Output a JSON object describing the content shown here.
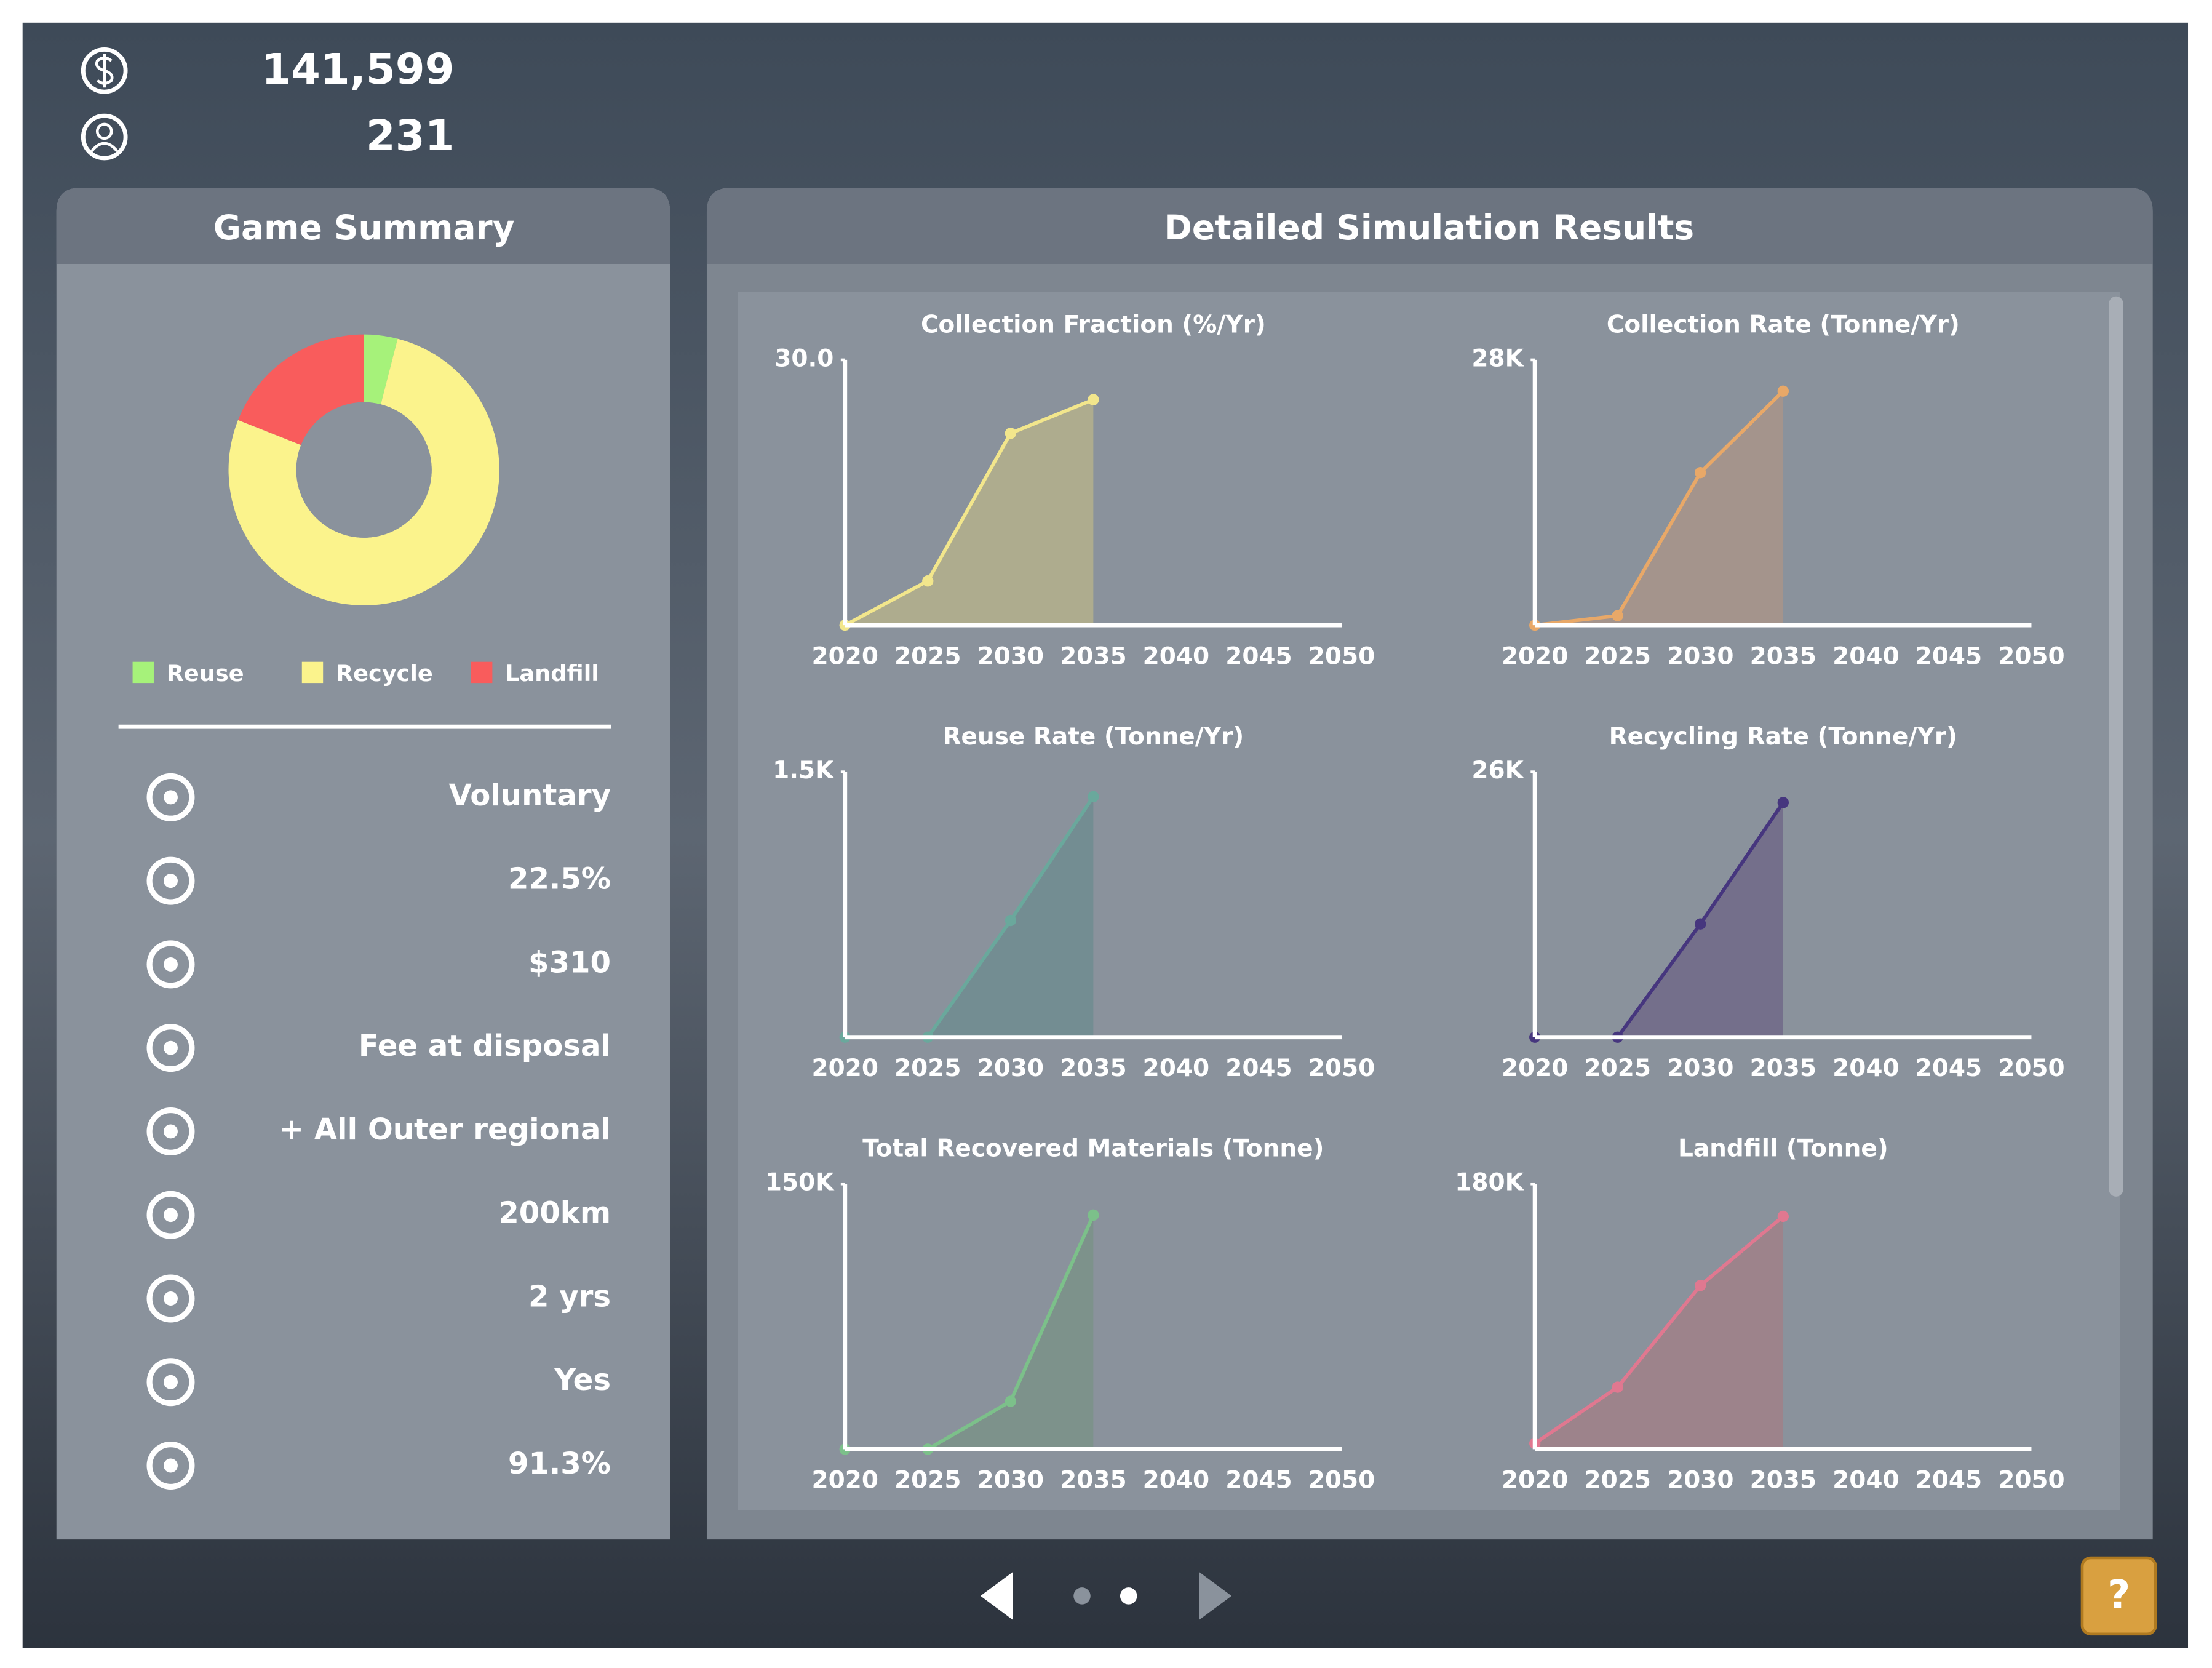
{
  "header": {
    "money": "141,599",
    "population": "231"
  },
  "summary": {
    "title": "Game Summary",
    "rows": [
      "Voluntary",
      "22.5%",
      "$310",
      "Fee at disposal",
      "+ All Outer regional",
      "200km",
      "2 yrs",
      "Yes",
      "91.3%"
    ]
  },
  "results_title": "Detailed Simulation Results",
  "help_label": "?",
  "chart_data": [
    {
      "type": "pie",
      "categories": [
        "Reuse",
        "Recycle",
        "Landfill"
      ],
      "values": [
        4,
        77,
        19
      ],
      "colors": [
        "#a6f27a",
        "#fbf38c",
        "#f95c5c"
      ],
      "donut": true
    },
    {
      "type": "area",
      "title": "Collection Fraction (%/Yr)",
      "x": [
        2020,
        2025,
        2030,
        2035
      ],
      "values": [
        0,
        5,
        21.7,
        25.5
      ],
      "color": "#f2e68c",
      "fill": "#b4b08c",
      "xlim": [
        2020,
        2050
      ],
      "ylim": [
        0,
        30
      ],
      "xticks": [
        2020,
        2025,
        2030,
        2035,
        2040,
        2045,
        2050
      ],
      "yticks": [
        {
          "value": 30,
          "label": "30.0"
        }
      ]
    },
    {
      "type": "area",
      "title": "Collection Rate (Tonne/Yr)",
      "x": [
        2020,
        2025,
        2030,
        2035
      ],
      "values": [
        0,
        1000,
        16100,
        24700
      ],
      "color": "#e8a868",
      "fill": "#a8948a",
      "xlim": [
        2020,
        2050
      ],
      "ylim": [
        0,
        28000
      ],
      "xticks": [
        2020,
        2025,
        2030,
        2035,
        2040,
        2045,
        2050
      ],
      "yticks": [
        {
          "value": 28000,
          "label": "28K"
        }
      ]
    },
    {
      "type": "area",
      "title": "Reuse Rate (Tonne/Yr)",
      "x": [
        2020,
        2025,
        2030,
        2035
      ],
      "values": [
        0,
        0,
        660,
        1360
      ],
      "color": "#6aa89c",
      "fill": "#6f8c90",
      "xlim": [
        2020,
        2050
      ],
      "ylim": [
        0,
        1500
      ],
      "xticks": [
        2020,
        2025,
        2030,
        2035,
        2040,
        2045,
        2050
      ],
      "yticks": [
        {
          "value": 1500,
          "label": "1.5K"
        }
      ]
    },
    {
      "type": "area",
      "title": "Recycling Rate (Tonne/Yr)",
      "x": [
        2020,
        2025,
        2030,
        2035
      ],
      "values": [
        0,
        0,
        11100,
        23000
      ],
      "color": "#46367e",
      "fill": "#706888",
      "xlim": [
        2020,
        2050
      ],
      "ylim": [
        0,
        26000
      ],
      "xticks": [
        2020,
        2025,
        2030,
        2035,
        2040,
        2045,
        2050
      ],
      "yticks": [
        {
          "value": 26000,
          "label": "26K"
        }
      ]
    },
    {
      "type": "area",
      "title": "Total Recovered Materials (Tonne)",
      "x": [
        2020,
        2025,
        2030,
        2035
      ],
      "values": [
        0,
        0,
        27100,
        132400
      ],
      "color": "#7cc08a",
      "fill": "#7a9288",
      "xlim": [
        2020,
        2050
      ],
      "ylim": [
        0,
        150000
      ],
      "xticks": [
        2020,
        2025,
        2030,
        2035,
        2040,
        2045,
        2050
      ],
      "yticks": [
        {
          "value": 150000,
          "label": "150K"
        }
      ]
    },
    {
      "type": "area",
      "title": "Landfill (Tonne)",
      "x": [
        2020,
        2025,
        2030,
        2035
      ],
      "values": [
        4000,
        42100,
        111100,
        158000
      ],
      "color": "#e07890",
      "fill": "#a08088",
      "xlim": [
        2020,
        2050
      ],
      "ylim": [
        0,
        180000
      ],
      "xticks": [
        2020,
        2025,
        2030,
        2035,
        2040,
        2045,
        2050
      ],
      "yticks": [
        {
          "value": 180000,
          "label": "180K"
        }
      ]
    }
  ]
}
